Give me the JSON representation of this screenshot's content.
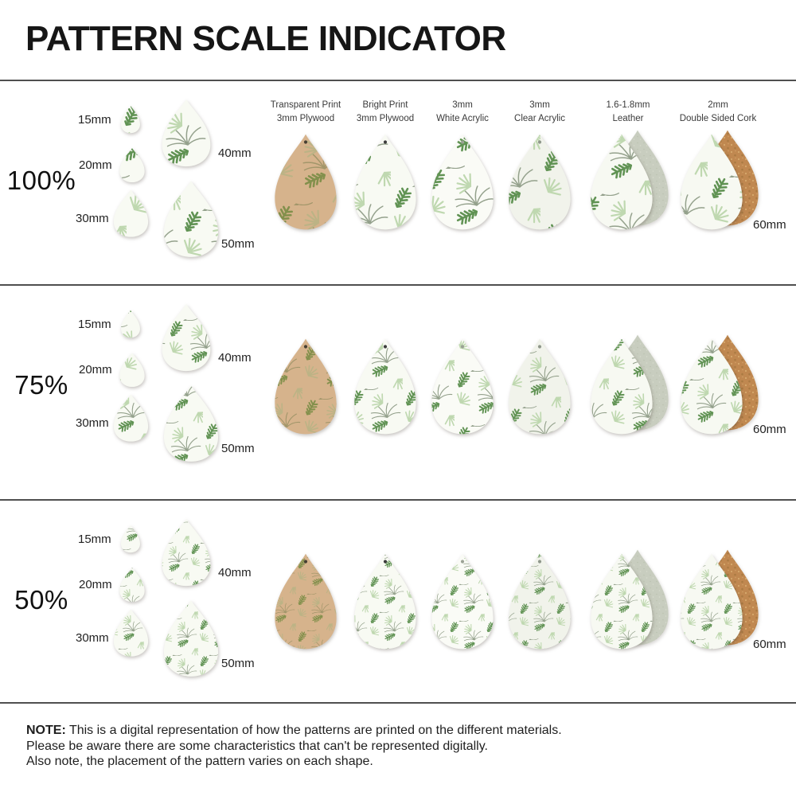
{
  "title": "PATTERN SCALE INDICATOR",
  "rows": [
    {
      "scale_label": "100%",
      "pattern_scale": 1,
      "sizes": [
        "15mm",
        "20mm",
        "30mm",
        "40mm",
        "50mm"
      ],
      "material_size_label": "60mm",
      "show_material_headers": true
    },
    {
      "scale_label": "75%",
      "pattern_scale": 0.75,
      "sizes": [
        "15mm",
        "20mm",
        "30mm",
        "40mm",
        "50mm"
      ],
      "material_size_label": "60mm",
      "show_material_headers": false
    },
    {
      "scale_label": "50%",
      "pattern_scale": 0.5,
      "sizes": [
        "15mm",
        "20mm",
        "30mm",
        "40mm",
        "50mm"
      ],
      "material_size_label": "60mm",
      "show_material_headers": false
    }
  ],
  "materials": [
    {
      "line1": "Transparent Print",
      "line2": "3mm Plywood",
      "type": "plywood-transparent"
    },
    {
      "line1": "Bright Print",
      "line2": "3mm Plywood",
      "type": "plywood-bright"
    },
    {
      "line1": "3mm",
      "line2": "White Acrylic",
      "type": "white-acrylic"
    },
    {
      "line1": "3mm",
      "line2": "Clear Acrylic",
      "type": "clear-acrylic"
    },
    {
      "line1": "1.6-1.8mm",
      "line2": "Leather",
      "type": "leather"
    },
    {
      "line1": "2mm",
      "line2": "Double Sided Cork",
      "type": "cork"
    }
  ],
  "note": {
    "label": "NOTE:",
    "lines": [
      "This is a digital representation of how the patterns are printed on the different materials.",
      "Please be aware there are some characteristics that can't be represented digitally.",
      "Also note, the placement of the pattern varies on each shape."
    ]
  },
  "colors": {
    "pattern_bright_green": "#619354",
    "pattern_light_green": "#BFD8B0",
    "pattern_outline_gray": "#94A18C",
    "plywood_wood": "#D6B38C",
    "wood_print_bright": "#83904C",
    "wood_print_light": "#BCB385",
    "wood_print_outline": "#A2966A",
    "leather_back": "#C8CDBF",
    "cork_back": "#C08850",
    "divider_gray": "#4F4F4F",
    "text_dark": "#1C1C1C"
  }
}
